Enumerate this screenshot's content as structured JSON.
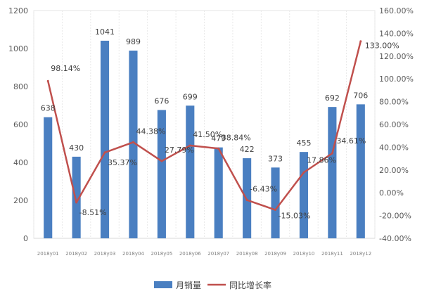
{
  "chart_data": {
    "type": "bar",
    "categories": [
      "2018y01",
      "2018y02",
      "2018y03",
      "2018y04",
      "2018y05",
      "2018y06",
      "2018y07",
      "2018y08",
      "2018y09",
      "2018y10",
      "2018y11",
      "2018y12"
    ],
    "series": [
      {
        "name": "月销量",
        "type": "bar",
        "axis": "left",
        "color": "#4a7fc1",
        "values": [
          638,
          430,
          1041,
          989,
          676,
          699,
          479,
          422,
          373,
          455,
          692,
          706
        ],
        "labels": [
          "638",
          "430",
          "1041",
          "989",
          "676",
          "699",
          "479",
          "422",
          "373",
          "455",
          "692",
          "706"
        ]
      },
      {
        "name": "同比增长率",
        "type": "line",
        "axis": "right",
        "color": "#c0504d",
        "values": [
          98.14,
          -8.51,
          35.37,
          44.38,
          27.79,
          41.5,
          38.84,
          -6.43,
          -15.03,
          17.86,
          34.61,
          133.0
        ],
        "labels": [
          "98.14%",
          "-8.51%",
          "35.37%",
          "44.38%",
          "27.79%",
          "41.50%",
          "38.84%",
          "-6.43%",
          "-15.03%",
          "17.86%",
          "34.61%",
          "133.00%"
        ]
      }
    ],
    "y_left": {
      "ylim": [
        0,
        1200
      ],
      "ticks": [
        "0",
        "200",
        "400",
        "600",
        "800",
        "1000",
        "1200"
      ]
    },
    "y_right": {
      "ylim": [
        -40,
        160
      ],
      "ticks": [
        "-40.00%",
        "-20.00%",
        "0.00%",
        "20.00%",
        "40.00%",
        "60.00%",
        "80.00%",
        "100.00%",
        "120.00%",
        "140.00%",
        "160.00%"
      ]
    },
    "grid": "vertical",
    "legend": "bottom-center"
  }
}
